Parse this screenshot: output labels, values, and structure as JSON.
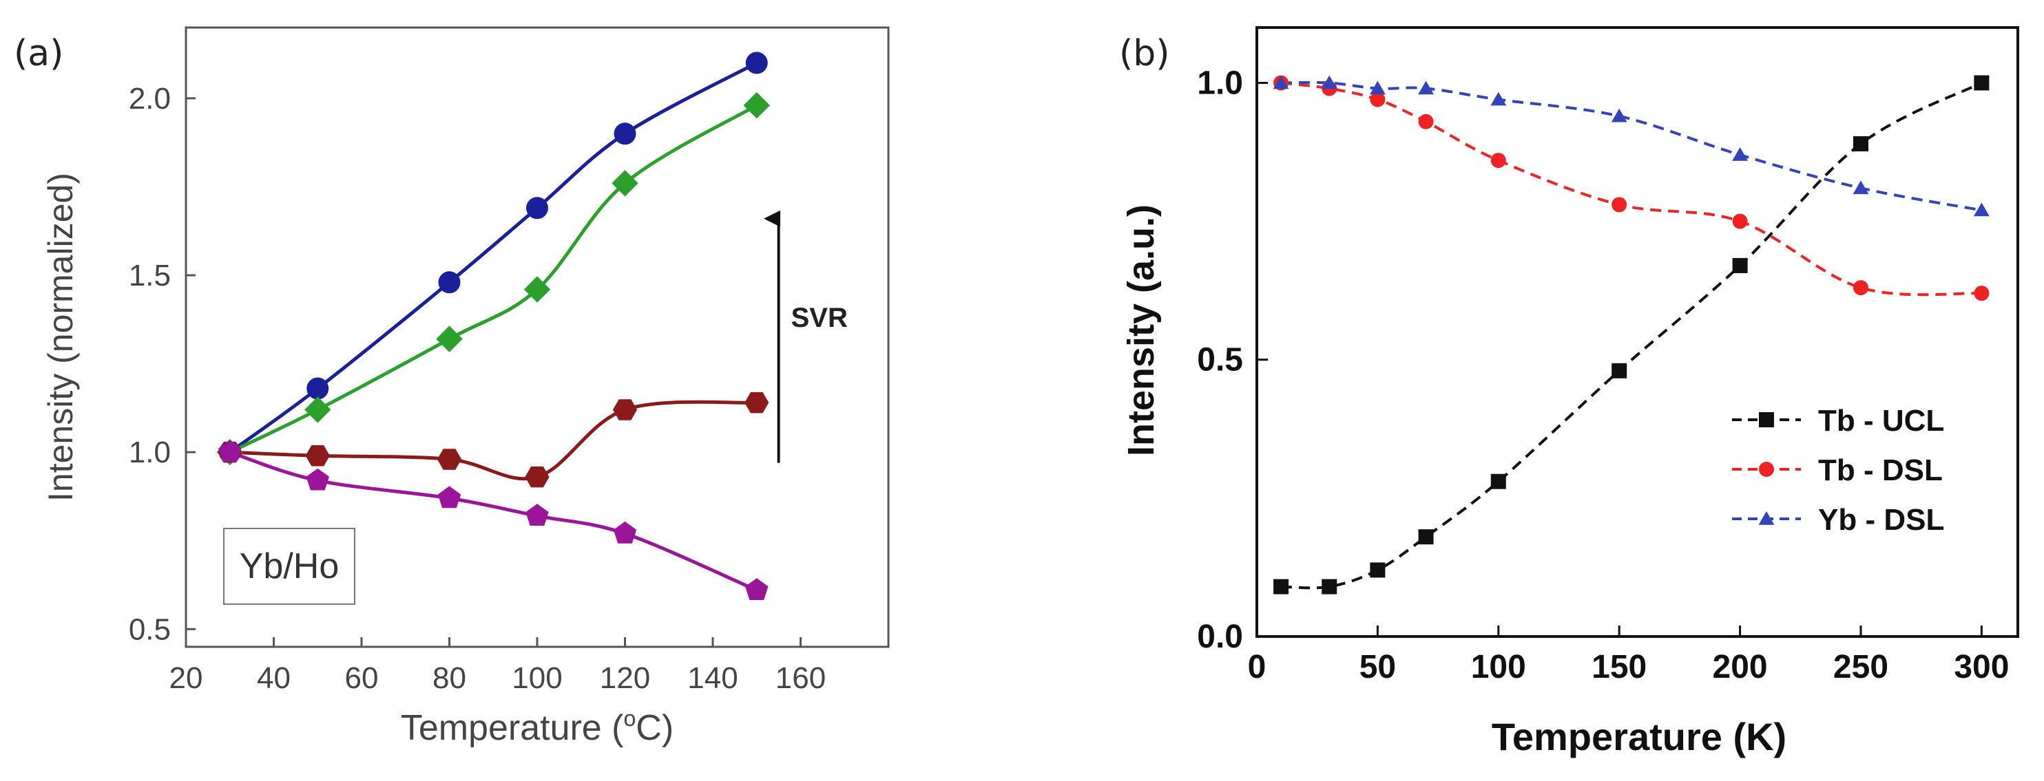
{
  "chart_data": [
    {
      "type": "line",
      "panel_label": "(a)",
      "xlabel": "Temperature (°C)",
      "xlabel_main": "Temperature (",
      "xlabel_unit": "C)",
      "xlabel_degree": "o",
      "ylabel": "Intensity (normalized)",
      "xlim": [
        20,
        180
      ],
      "ylim": [
        0.45,
        2.2
      ],
      "xticks": [
        "20",
        "40",
        "60",
        "80",
        "100",
        "120",
        "140",
        "160"
      ],
      "xtick_values": [
        20,
        40,
        60,
        80,
        100,
        120,
        140,
        160
      ],
      "yticks": [
        "0.5",
        "1.0",
        "1.5",
        "2.0"
      ],
      "ytick_values": [
        0.5,
        1.0,
        1.5,
        2.0
      ],
      "inset_label": "Yb/Ho",
      "annotation": "SVR",
      "arrow": {
        "x": 155,
        "y_from": 0.97,
        "y_to": 1.66
      },
      "series": [
        {
          "name": "blue",
          "color": "#1a1f9a",
          "marker": "circle",
          "x": [
            30,
            50,
            80,
            100,
            120,
            150
          ],
          "y": [
            1.0,
            1.18,
            1.48,
            1.69,
            1.9,
            2.1
          ]
        },
        {
          "name": "green",
          "color": "#2ca02c",
          "marker": "diamond",
          "x": [
            30,
            50,
            80,
            100,
            120,
            150
          ],
          "y": [
            1.0,
            1.12,
            1.32,
            1.46,
            1.76,
            1.98
          ]
        },
        {
          "name": "brown",
          "color": "#8b1a1a",
          "marker": "hexagon",
          "x": [
            30,
            50,
            80,
            100,
            120,
            150
          ],
          "y": [
            1.0,
            0.99,
            0.98,
            0.93,
            1.12,
            1.14
          ]
        },
        {
          "name": "purple",
          "color": "#9b159b",
          "marker": "pentagon",
          "x": [
            30,
            50,
            80,
            100,
            120,
            150
          ],
          "y": [
            1.0,
            0.92,
            0.87,
            0.82,
            0.77,
            0.61
          ]
        }
      ]
    },
    {
      "type": "line",
      "panel_label": "(b)",
      "xlabel": "Temperature (K)",
      "ylabel": "Intensity (a.u.)",
      "xlim": [
        0,
        315
      ],
      "ylim": [
        0,
        1.1
      ],
      "xticks": [
        "0",
        "50",
        "100",
        "150",
        "200",
        "250",
        "300"
      ],
      "xtick_values": [
        0,
        50,
        100,
        150,
        200,
        250,
        300
      ],
      "yticks": [
        "0.0",
        "0.5",
        "1.0"
      ],
      "ytick_values": [
        0.0,
        0.5,
        1.0
      ],
      "legend_position": "lower-right",
      "series": [
        {
          "name": "Tb - UCL",
          "color": "#111111",
          "marker": "square",
          "x": [
            10,
            30,
            50,
            70,
            100,
            150,
            200,
            250,
            300
          ],
          "y": [
            0.09,
            0.09,
            0.12,
            0.18,
            0.28,
            0.48,
            0.67,
            0.89,
            1.0
          ]
        },
        {
          "name": "Tb - DSL",
          "color": "#ee2222",
          "marker": "circle",
          "x": [
            10,
            30,
            50,
            70,
            100,
            150,
            200,
            250,
            300
          ],
          "y": [
            1.0,
            0.99,
            0.97,
            0.93,
            0.86,
            0.78,
            0.75,
            0.63,
            0.62
          ]
        },
        {
          "name": "Yb - DSL",
          "color": "#3344bb",
          "marker": "triangle",
          "x": [
            10,
            30,
            50,
            70,
            100,
            150,
            200,
            250,
            300
          ],
          "y": [
            1.0,
            1.0,
            0.99,
            0.99,
            0.97,
            0.94,
            0.87,
            0.81,
            0.77
          ]
        }
      ]
    }
  ]
}
